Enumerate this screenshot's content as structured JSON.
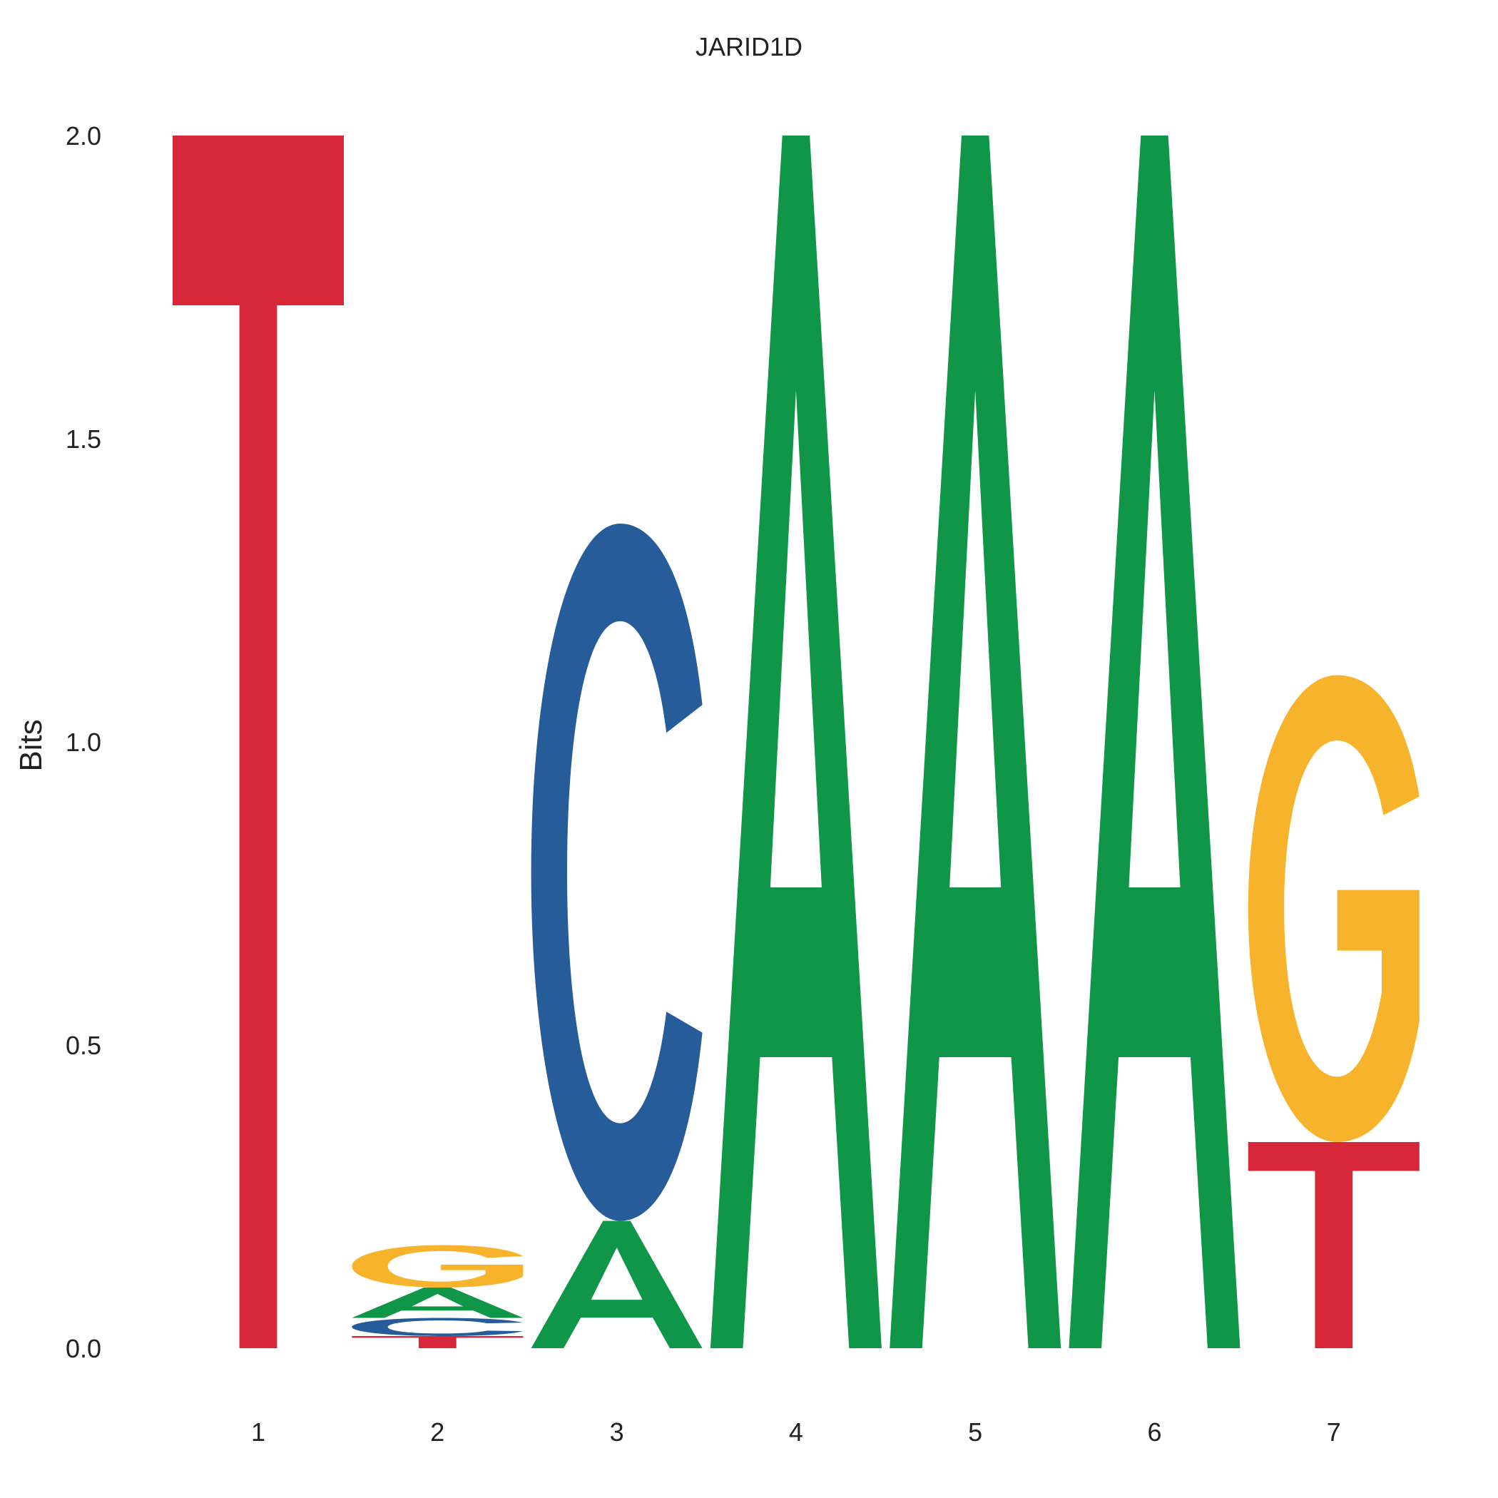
{
  "chart_data": {
    "type": "sequence-logo",
    "title": "JARID1D",
    "ylabel": "Bits",
    "ylim": [
      0,
      2
    ],
    "yticks": [
      "0.0",
      "0.5",
      "1.0",
      "1.5",
      "2.0"
    ],
    "ytick_values": [
      0,
      0.5,
      1.0,
      1.5,
      2.0
    ],
    "positions": [
      "1",
      "2",
      "3",
      "4",
      "5",
      "6",
      "7"
    ],
    "colors": {
      "A": "#109648",
      "C": "#255C99",
      "G": "#F7B32B",
      "T": "#D62839"
    },
    "stacks": [
      [
        {
          "letter": "T",
          "bits": 2.0
        }
      ],
      [
        {
          "letter": "T",
          "bits": 0.02
        },
        {
          "letter": "C",
          "bits": 0.03
        },
        {
          "letter": "A",
          "bits": 0.05
        },
        {
          "letter": "G",
          "bits": 0.07
        }
      ],
      [
        {
          "letter": "A",
          "bits": 0.21
        },
        {
          "letter": "C",
          "bits": 1.15
        }
      ],
      [
        {
          "letter": "A",
          "bits": 2.0
        }
      ],
      [
        {
          "letter": "A",
          "bits": 2.0
        }
      ],
      [
        {
          "letter": "A",
          "bits": 2.0
        }
      ],
      [
        {
          "letter": "T",
          "bits": 0.34
        },
        {
          "letter": "G",
          "bits": 0.77
        }
      ]
    ]
  }
}
